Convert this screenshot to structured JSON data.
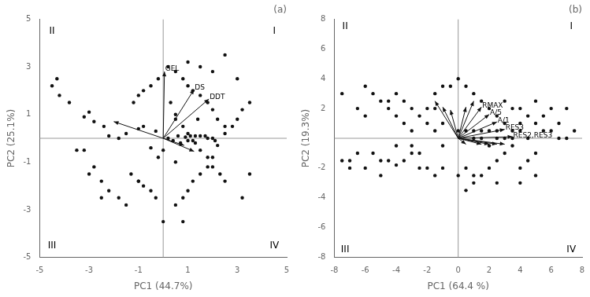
{
  "chart_data": [
    {
      "type": "scatter",
      "title": "(a)",
      "xlabel": "PC1 (44.7%)",
      "ylabel": "PC2 (25.1%)",
      "xlim": [
        -5,
        5
      ],
      "ylim": [
        -5,
        5
      ],
      "xticks": [
        -5,
        -3,
        -1,
        1,
        3,
        5
      ],
      "yticks": [
        -5,
        -3,
        -1,
        1,
        3,
        5
      ],
      "grid": false,
      "color": "#111111",
      "points": [
        [
          -4.3,
          2.5
        ],
        [
          -4.5,
          2.2
        ],
        [
          -3.8,
          1.5
        ],
        [
          -3.0,
          1.1
        ],
        [
          -2.8,
          0.7
        ],
        [
          -2.4,
          0.5
        ],
        [
          -4.2,
          1.8
        ],
        [
          -2.2,
          0.1
        ],
        [
          -1.8,
          0.0
        ],
        [
          -3.2,
          0.9
        ],
        [
          -1.5,
          0.2
        ],
        [
          -1.0,
          0.4
        ],
        [
          -0.8,
          0.5
        ],
        [
          -3.5,
          -0.5
        ],
        [
          -3.2,
          -0.5
        ],
        [
          -2.8,
          -1.2
        ],
        [
          -2.5,
          -1.8
        ],
        [
          -2.2,
          -2.2
        ],
        [
          -1.8,
          -2.5
        ],
        [
          -1.5,
          -2.8
        ],
        [
          -3.0,
          -1.5
        ],
        [
          -2.5,
          -2.5
        ],
        [
          -1.0,
          -1.8
        ],
        [
          -0.8,
          -2.0
        ],
        [
          -0.5,
          -2.2
        ],
        [
          -0.3,
          -2.5
        ],
        [
          0.0,
          -3.5
        ],
        [
          0.5,
          -2.8
        ],
        [
          0.8,
          -2.5
        ],
        [
          1.0,
          -2.2
        ],
        [
          1.2,
          -1.8
        ],
        [
          1.5,
          -1.5
        ],
        [
          1.8,
          -1.2
        ],
        [
          2.0,
          -0.8
        ],
        [
          2.2,
          -0.3
        ],
        [
          2.5,
          0.2
        ],
        [
          2.8,
          0.5
        ],
        [
          3.0,
          0.8
        ],
        [
          3.2,
          1.2
        ],
        [
          3.5,
          1.5
        ],
        [
          0.2,
          3.0
        ],
        [
          0.5,
          2.8
        ],
        [
          0.8,
          2.5
        ],
        [
          1.0,
          2.2
        ],
        [
          1.2,
          2.0
        ],
        [
          1.5,
          1.8
        ],
        [
          1.8,
          1.5
        ],
        [
          2.0,
          1.2
        ],
        [
          2.2,
          0.8
        ],
        [
          2.5,
          0.5
        ],
        [
          -0.2,
          2.5
        ],
        [
          -0.5,
          2.2
        ],
        [
          -0.8,
          2.0
        ],
        [
          -1.0,
          1.8
        ],
        [
          -1.2,
          1.5
        ],
        [
          0.3,
          1.5
        ],
        [
          0.5,
          1.0
        ],
        [
          0.8,
          0.5
        ],
        [
          1.0,
          0.2
        ],
        [
          1.3,
          -0.2
        ],
        [
          1.5,
          -0.5
        ],
        [
          1.8,
          -0.8
        ],
        [
          2.0,
          -1.2
        ],
        [
          2.3,
          -1.5
        ],
        [
          2.5,
          -1.8
        ],
        [
          3.5,
          -1.5
        ],
        [
          0.0,
          -0.5
        ],
        [
          0.2,
          0.0
        ],
        [
          -0.3,
          0.3
        ],
        [
          0.5,
          -1.0
        ],
        [
          1.0,
          3.2
        ],
        [
          2.0,
          2.8
        ],
        [
          3.0,
          2.5
        ],
        [
          2.5,
          3.5
        ],
        [
          1.5,
          3.0
        ],
        [
          0.8,
          -3.5
        ],
        [
          3.2,
          -2.5
        ],
        [
          0.6,
          0.1
        ],
        [
          0.9,
          0.05
        ],
        [
          1.1,
          0.1
        ],
        [
          1.3,
          0.1
        ],
        [
          1.5,
          0.1
        ],
        [
          1.0,
          -0.1
        ],
        [
          1.2,
          -0.1
        ],
        [
          0.7,
          -0.2
        ],
        [
          0.4,
          -0.1
        ],
        [
          1.7,
          0.1
        ],
        [
          1.8,
          0.0
        ],
        [
          2.0,
          0.0
        ],
        [
          2.1,
          -0.1
        ],
        [
          -0.5,
          -0.4
        ],
        [
          -0.2,
          -0.8
        ],
        [
          0.5,
          0.8
        ],
        [
          1.4,
          0.8
        ],
        [
          -1.3,
          -1.5
        ],
        [
          -1.0,
          -1.8
        ]
      ],
      "arrows": [
        [
          0,
          0,
          0.05,
          2.8
        ],
        [
          0,
          0,
          1.25,
          2.05
        ],
        [
          0,
          0,
          1.85,
          1.65
        ],
        [
          0,
          0,
          -2.0,
          0.7
        ],
        [
          0,
          0,
          0.85,
          -0.3
        ],
        [
          0,
          0,
          1.25,
          -0.55
        ]
      ],
      "arrow_labels": [
        {
          "text": "GEL",
          "x": 0.08,
          "y": 2.92
        },
        {
          "text": "DS",
          "x": 1.28,
          "y": 2.12
        },
        {
          "text": "DDT",
          "x": 1.88,
          "y": 1.72
        }
      ],
      "quadrant_labels": [
        {
          "text": "II",
          "x": -4.5,
          "y": 4.5
        },
        {
          "text": "I",
          "x": 4.5,
          "y": 4.5
        },
        {
          "text": "III",
          "x": -4.5,
          "y": -4.5
        },
        {
          "text": "IV",
          "x": 4.5,
          "y": -4.5
        }
      ]
    },
    {
      "type": "scatter",
      "title": "(b)",
      "xlabel": "PC1 (64.4 %)",
      "ylabel": "PC2 (19.3%)",
      "xlim": [
        -8,
        8
      ],
      "ylim": [
        -8,
        8
      ],
      "xticks": [
        -8,
        -6,
        -4,
        -2,
        0,
        2,
        4,
        6,
        8
      ],
      "yticks": [
        -8,
        -6,
        -4,
        -2,
        2,
        4,
        6,
        8
      ],
      "grid": false,
      "color": "#111111",
      "points": [
        [
          -7.5,
          3.0
        ],
        [
          -6.5,
          2.0
        ],
        [
          -6.0,
          1.5
        ],
        [
          -5.5,
          -1.0
        ],
        [
          -5.0,
          -1.5
        ],
        [
          -4.5,
          2.5
        ],
        [
          -4.5,
          -1.5
        ],
        [
          -4.0,
          3.0
        ],
        [
          -4.0,
          -1.8
        ],
        [
          -3.5,
          2.5
        ],
        [
          -3.5,
          -1.5
        ],
        [
          -3.0,
          2.0
        ],
        [
          -3.0,
          -1.0
        ],
        [
          -2.5,
          -2.0
        ],
        [
          -2.0,
          2.0
        ],
        [
          -2.0,
          -2.0
        ],
        [
          -1.5,
          3.0
        ],
        [
          -1.5,
          -2.5
        ],
        [
          -1.0,
          3.5
        ],
        [
          -1.0,
          -2.0
        ],
        [
          0.0,
          4.0
        ],
        [
          0.0,
          -2.5
        ],
        [
          0.5,
          3.5
        ],
        [
          0.5,
          -2.0
        ],
        [
          1.0,
          3.0
        ],
        [
          1.0,
          -2.5
        ],
        [
          1.5,
          2.5
        ],
        [
          1.5,
          -2.5
        ],
        [
          2.0,
          2.0
        ],
        [
          2.0,
          -2.0
        ],
        [
          2.5,
          1.5
        ],
        [
          2.5,
          -1.5
        ],
        [
          3.0,
          1.0
        ],
        [
          3.0,
          -1.0
        ],
        [
          3.5,
          0.5
        ],
        [
          3.5,
          -0.5
        ],
        [
          4.0,
          2.0
        ],
        [
          4.0,
          -2.0
        ],
        [
          4.5,
          1.5
        ],
        [
          4.5,
          -1.5
        ],
        [
          5.0,
          2.5
        ],
        [
          5.0,
          -2.5
        ],
        [
          5.5,
          0.5
        ],
        [
          6.0,
          2.0
        ],
        [
          6.5,
          0.0
        ],
        [
          7.0,
          2.0
        ],
        [
          7.5,
          0.5
        ],
        [
          -7.0,
          -1.5
        ],
        [
          -6.5,
          -1.0
        ],
        [
          -6.0,
          3.5
        ],
        [
          -5.5,
          3.0
        ],
        [
          -5.0,
          2.5
        ],
        [
          -4.5,
          2.0
        ],
        [
          -4.0,
          1.5
        ],
        [
          -3.5,
          1.0
        ],
        [
          -3.0,
          0.5
        ],
        [
          -2.5,
          1.5
        ],
        [
          -2.0,
          1.0
        ],
        [
          -1.5,
          0.5
        ],
        [
          -1.0,
          1.0
        ],
        [
          1.0,
          0.5
        ],
        [
          1.5,
          0.0
        ],
        [
          2.0,
          -0.5
        ],
        [
          2.5,
          0.0
        ],
        [
          3.0,
          0.0
        ],
        [
          3.5,
          2.0
        ],
        [
          4.0,
          1.0
        ],
        [
          4.5,
          0.0
        ],
        [
          5.0,
          1.0
        ],
        [
          5.5,
          1.5
        ],
        [
          0.5,
          -3.5
        ],
        [
          1.0,
          -3.0
        ],
        [
          2.5,
          -3.0
        ],
        [
          4.0,
          -3.0
        ],
        [
          5.0,
          -1.0
        ],
        [
          -1.5,
          2.0
        ],
        [
          -2.5,
          -1.0
        ],
        [
          3.0,
          2.5
        ],
        [
          -0.5,
          3.5
        ],
        [
          -7.5,
          -1.5
        ],
        [
          -7.0,
          -2.0
        ],
        [
          -6.0,
          -2.0
        ],
        [
          -5.0,
          -2.5
        ],
        [
          -4.0,
          -0.5
        ],
        [
          -3.0,
          -0.5
        ],
        [
          -1.0,
          -0.5
        ],
        [
          0.0,
          0.5
        ],
        [
          0.5,
          0.5
        ],
        [
          1.0,
          0.0
        ],
        [
          1.5,
          0.5
        ],
        [
          2.0,
          0.5
        ],
        [
          2.5,
          0.5
        ],
        [
          3.5,
          0.0
        ],
        [
          4.0,
          0.5
        ],
        [
          6.0,
          0.5
        ],
        [
          6.5,
          1.0
        ],
        [
          7.0,
          0.0
        ]
      ],
      "arrows": [
        [
          0,
          0,
          -1.5,
          2.5
        ],
        [
          0,
          0,
          -1.0,
          2.1
        ],
        [
          0,
          0,
          -0.5,
          1.9
        ],
        [
          0,
          0,
          0.5,
          2.1
        ],
        [
          0,
          0,
          1.0,
          2.5
        ],
        [
          0,
          0,
          1.5,
          2.1
        ],
        [
          0,
          0,
          2.0,
          1.6
        ],
        [
          0,
          0,
          2.5,
          1.1
        ],
        [
          0,
          0,
          3.0,
          0.6
        ],
        [
          0,
          0,
          3.5,
          0.1
        ],
        [
          0,
          0,
          3.0,
          -0.4
        ],
        [
          0,
          0,
          2.5,
          -0.4
        ],
        [
          0,
          0,
          2.0,
          -0.4
        ],
        [
          0,
          0,
          1.5,
          -0.4
        ],
        [
          0,
          0,
          0.5,
          -0.4
        ]
      ],
      "arrow_labels": [
        {
          "text": "RMAX",
          "x": 1.55,
          "y": 2.2
        },
        {
          "text": "A/5",
          "x": 2.05,
          "y": 1.7
        },
        {
          "text": "A/1",
          "x": 2.55,
          "y": 1.2
        },
        {
          "text": "RES3",
          "x": 3.05,
          "y": 0.7
        },
        {
          "text": "RES2,RES3",
          "x": 3.55,
          "y": 0.2
        }
      ],
      "quadrant_labels": [
        {
          "text": "II",
          "x": -7.3,
          "y": 7.5
        },
        {
          "text": "I",
          "x": 7.3,
          "y": 7.5
        },
        {
          "text": "III",
          "x": -7.3,
          "y": -7.5
        },
        {
          "text": "IV",
          "x": 7.3,
          "y": -7.5
        }
      ]
    }
  ]
}
